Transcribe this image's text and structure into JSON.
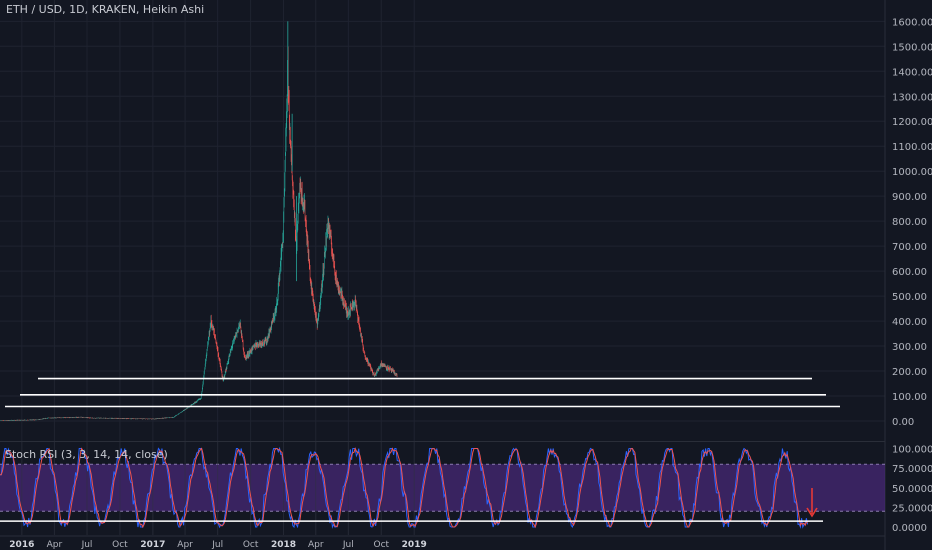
{
  "header": {
    "title": "ETH / USD, 1D, KRAKEN, Heikin Ashi"
  },
  "indicator": {
    "title": "Stoch RSI (3, 3, 14, 14, close)"
  },
  "colors": {
    "background": "#131722",
    "up": "#26a69a",
    "down": "#ef5350",
    "k_line": "#2962ff",
    "d_line": "#ef5350",
    "band": "#4a2a7a",
    "text": "#b2b5be"
  },
  "chart_data": [
    {
      "type": "candlestick",
      "title": "ETH / USD, 1D, KRAKEN, Heikin Ashi",
      "x_tick_labels": [
        "2016",
        "Apr",
        "Jul",
        "Oct",
        "2017",
        "Apr",
        "Jul",
        "Oct",
        "2018",
        "Apr",
        "Jul",
        "Oct",
        "2019"
      ],
      "y_tick_labels": [
        "0.00",
        "100.00",
        "200.00",
        "300.00",
        "400.00",
        "500.00",
        "600.00",
        "700.00",
        "800.00",
        "900.00",
        "1000.00",
        "1100.00",
        "1200.00",
        "1300.00",
        "1400.00",
        "1500.00",
        "1600.00"
      ],
      "ylim": [
        0,
        1600
      ],
      "grid": true,
      "price_path": [
        [
          "2015-11-01",
          1
        ],
        [
          "2016-02-15",
          5
        ],
        [
          "2016-03-15",
          12
        ],
        [
          "2016-06-15",
          15
        ],
        [
          "2016-07-15",
          12
        ],
        [
          "2016-12-31",
          8
        ],
        [
          "2017-02-28",
          15
        ],
        [
          "2017-03-31",
          45
        ],
        [
          "2017-05-15",
          90
        ],
        [
          "2017-06-12",
          400
        ],
        [
          "2017-06-25",
          330
        ],
        [
          "2017-07-16",
          160
        ],
        [
          "2017-08-10",
          300
        ],
        [
          "2017-09-01",
          390
        ],
        [
          "2017-09-15",
          250
        ],
        [
          "2017-10-15",
          305
        ],
        [
          "2017-11-15",
          320
        ],
        [
          "2017-12-12",
          450
        ],
        [
          "2017-12-31",
          750
        ],
        [
          "2018-01-13",
          1400
        ],
        [
          "2018-01-20",
          1100
        ],
        [
          "2018-02-06",
          700
        ],
        [
          "2018-02-15",
          950
        ],
        [
          "2018-03-01",
          850
        ],
        [
          "2018-03-18",
          550
        ],
        [
          "2018-04-05",
          380
        ],
        [
          "2018-04-15",
          500
        ],
        [
          "2018-05-05",
          800
        ],
        [
          "2018-05-30",
          550
        ],
        [
          "2018-06-13",
          500
        ],
        [
          "2018-06-28",
          430
        ],
        [
          "2018-07-20",
          480
        ],
        [
          "2018-08-14",
          270
        ],
        [
          "2018-09-12",
          180
        ],
        [
          "2018-10-01",
          230
        ],
        [
          "2018-11-01",
          200
        ],
        [
          "2018-11-15",
          180
        ]
      ],
      "horizontal_lines": [
        170,
        105,
        58
      ]
    },
    {
      "type": "line",
      "title": "Stoch RSI (3, 3, 14, 14, close)",
      "y_tick_labels": [
        "100.0000",
        "75.0000",
        "50.0000",
        "25.0000",
        "0.0000"
      ],
      "ylim": [
        0,
        100
      ],
      "bands": [
        20,
        80
      ],
      "horizontal_lines": [
        10
      ],
      "annotation": "down-arrow"
    }
  ]
}
